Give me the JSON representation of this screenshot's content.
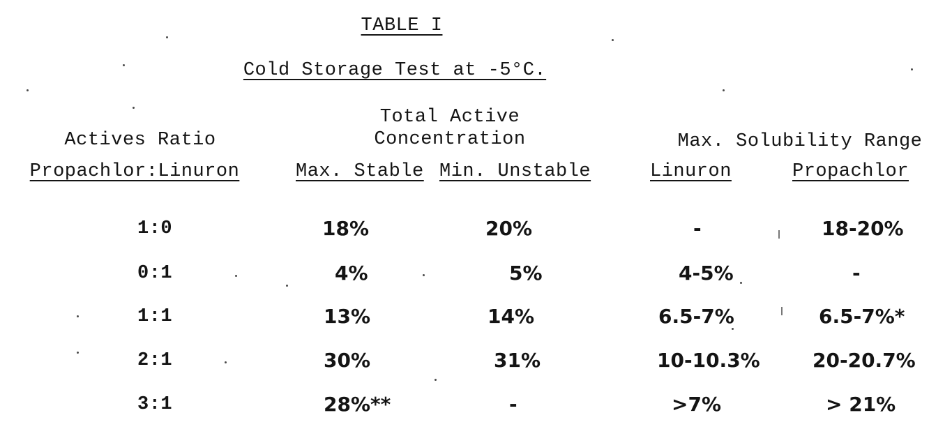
{
  "document": {
    "title": "TABLE I",
    "subtitle": "Cold Storage Test at -5°C.",
    "headers": {
      "ratio_top": "Actives Ratio",
      "ratio_bottom": "Propachlor:Linuron",
      "concentration_top1": "Total Active",
      "concentration_top2": "Concentration",
      "max_stable": "Max. Stable",
      "min_unstable": "Min. Unstable",
      "solubility_top": "Max. Solubility Range",
      "linuron": "Linuron",
      "propachlor": "Propachlor"
    },
    "rows": [
      {
        "ratio": "1:0",
        "max_stable": "18%",
        "min_unstable": "20%",
        "linuron": "-",
        "propachlor": "18-20%"
      },
      {
        "ratio": "0:1",
        "max_stable": "4%",
        "min_unstable": "5%",
        "linuron": "4-5%",
        "propachlor": "-"
      },
      {
        "ratio": "1:1",
        "max_stable": "13%",
        "min_unstable": "14%",
        "linuron": "6.5-7%",
        "propachlor": "6.5-7%*"
      },
      {
        "ratio": "2:1",
        "max_stable": "30%",
        "min_unstable": "31%",
        "linuron": "10-10.3%",
        "propachlor": "20-20.7%"
      },
      {
        "ratio": "3:1",
        "max_stable": "28%**",
        "min_unstable": "-",
        "linuron": ">7%",
        "propachlor": "> 21%"
      }
    ]
  }
}
